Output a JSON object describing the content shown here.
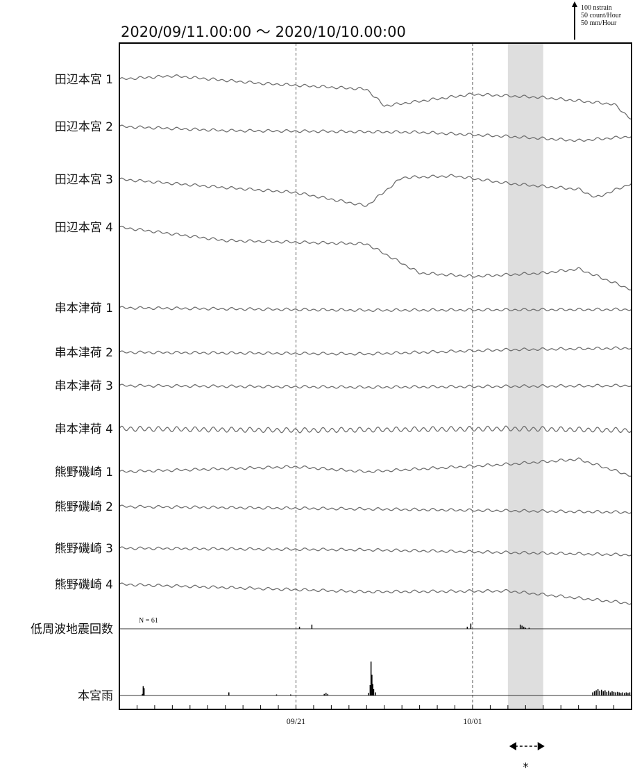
{
  "chart_data": {
    "type": "line",
    "title": "2020/09/11.00:00 ～ 2020/10/10.00:00",
    "scale_legend": [
      "100 nstrain",
      "50 count/Hour",
      "50 mm/Hour"
    ],
    "x_range": [
      "2020-09-11",
      "2020-10-10"
    ],
    "x_ticks": [
      {
        "date": "2020-09-21",
        "label": "09/21"
      },
      {
        "date": "2020-10-01",
        "label": "10/01"
      }
    ],
    "highlight": {
      "start": "2020-10-03",
      "end": "2020-10-05",
      "marker": "*"
    },
    "grid": false,
    "units": {
      "strain": "nstrain",
      "count": "count/Hour",
      "rain": "mm/Hour"
    },
    "series": [
      {
        "name": "田辺本宮 1",
        "unit": "nstrain",
        "trend": [
          [
            0,
            0
          ],
          [
            3,
            4
          ],
          [
            8,
            -5
          ],
          [
            14,
            -12
          ],
          [
            15,
            -32
          ],
          [
            20,
            -18
          ],
          [
            24,
            -22
          ],
          [
            28,
            -30
          ],
          [
            29,
            -48
          ]
        ]
      },
      {
        "name": "田辺本宮 2",
        "unit": "nstrain",
        "trend": [
          [
            0,
            0
          ],
          [
            6,
            -5
          ],
          [
            12,
            -6
          ],
          [
            17,
            -7
          ],
          [
            22,
            -12
          ],
          [
            26,
            -17
          ],
          [
            29,
            -12
          ]
        ]
      },
      {
        "name": "田辺本宮 3",
        "unit": "nstrain",
        "trend": [
          [
            0,
            0
          ],
          [
            6,
            -10
          ],
          [
            10,
            -16
          ],
          [
            14,
            -32
          ],
          [
            16,
            2
          ],
          [
            19,
            4
          ],
          [
            22,
            -5
          ],
          [
            26,
            -12
          ],
          [
            27,
            -22
          ],
          [
            29,
            -5
          ]
        ]
      },
      {
        "name": "田辺本宮 4",
        "unit": "nstrain",
        "trend": [
          [
            0,
            0
          ],
          [
            6,
            -16
          ],
          [
            10,
            -18
          ],
          [
            14,
            -20
          ],
          [
            17,
            -55
          ],
          [
            20,
            -59
          ],
          [
            24,
            -55
          ],
          [
            26,
            -50
          ],
          [
            29,
            -75
          ]
        ]
      },
      {
        "name": "串本津荷 1",
        "unit": "nstrain",
        "trend": [
          [
            0,
            0
          ],
          [
            14,
            -3
          ],
          [
            29,
            -2
          ]
        ]
      },
      {
        "name": "串本津荷 2",
        "unit": "nstrain",
        "trend": [
          [
            0,
            0
          ],
          [
            14,
            -2
          ],
          [
            22,
            3
          ],
          [
            29,
            5
          ]
        ]
      },
      {
        "name": "串本津荷 3",
        "unit": "nstrain",
        "trend": [
          [
            0,
            0
          ],
          [
            14,
            -2
          ],
          [
            29,
            0
          ]
        ]
      },
      {
        "name": "串本津荷 4",
        "unit": "nstrain",
        "trend": [
          [
            0,
            0
          ],
          [
            10,
            -2
          ],
          [
            22,
            0
          ],
          [
            29,
            -2
          ]
        ]
      },
      {
        "name": "熊野磯崎 1",
        "unit": "nstrain",
        "trend": [
          [
            0,
            0
          ],
          [
            10,
            6
          ],
          [
            14,
            0
          ],
          [
            22,
            9
          ],
          [
            26,
            15
          ],
          [
            29,
            -5
          ]
        ]
      },
      {
        "name": "熊野磯崎 2",
        "unit": "nstrain",
        "trend": [
          [
            0,
            0
          ],
          [
            14,
            -3
          ],
          [
            29,
            -7
          ]
        ]
      },
      {
        "name": "熊野磯崎 3",
        "unit": "nstrain",
        "trend": [
          [
            0,
            0
          ],
          [
            14,
            -2
          ],
          [
            29,
            -8
          ]
        ]
      },
      {
        "name": "熊野磯崎 4",
        "unit": "nstrain",
        "trend": [
          [
            0,
            0
          ],
          [
            14,
            -9
          ],
          [
            22,
            -8
          ],
          [
            29,
            -23
          ]
        ]
      },
      {
        "name": "低周波地震回数",
        "unit": "count/Hour",
        "annotation": "N =  61",
        "events": [
          [
            10.2,
            4
          ],
          [
            10.9,
            8
          ],
          [
            19.7,
            4
          ],
          [
            19.9,
            10
          ],
          [
            22.7,
            8
          ],
          [
            22.8,
            6
          ],
          [
            22.9,
            4
          ],
          [
            23.0,
            2
          ],
          [
            23.2,
            2
          ],
          [
            29.0,
            4
          ]
        ]
      },
      {
        "name": "本宮雨",
        "unit": "mm/Hour",
        "events": [
          [
            1.3,
            3
          ],
          [
            1.35,
            18
          ],
          [
            1.4,
            14
          ],
          [
            6.2,
            6
          ],
          [
            8.9,
            2
          ],
          [
            9.7,
            2
          ],
          [
            11.6,
            3
          ],
          [
            11.7,
            5
          ],
          [
            11.8,
            3
          ],
          [
            14.1,
            5
          ],
          [
            14.2,
            20
          ],
          [
            14.25,
            65
          ],
          [
            14.3,
            40
          ],
          [
            14.35,
            22
          ],
          [
            14.4,
            12
          ],
          [
            14.5,
            6
          ],
          [
            26.8,
            6
          ],
          [
            26.9,
            8
          ],
          [
            27.0,
            10
          ],
          [
            27.1,
            12
          ],
          [
            27.2,
            9
          ],
          [
            27.3,
            11
          ],
          [
            27.4,
            8
          ],
          [
            27.5,
            10
          ],
          [
            27.6,
            7
          ],
          [
            27.7,
            9
          ],
          [
            27.8,
            6
          ],
          [
            27.9,
            8
          ],
          [
            28.0,
            7
          ],
          [
            28.1,
            6
          ],
          [
            28.2,
            7
          ],
          [
            28.3,
            6
          ],
          [
            28.4,
            5
          ],
          [
            28.5,
            6
          ],
          [
            28.6,
            5
          ],
          [
            28.7,
            6
          ],
          [
            28.8,
            5
          ],
          [
            28.9,
            6
          ]
        ]
      }
    ]
  }
}
